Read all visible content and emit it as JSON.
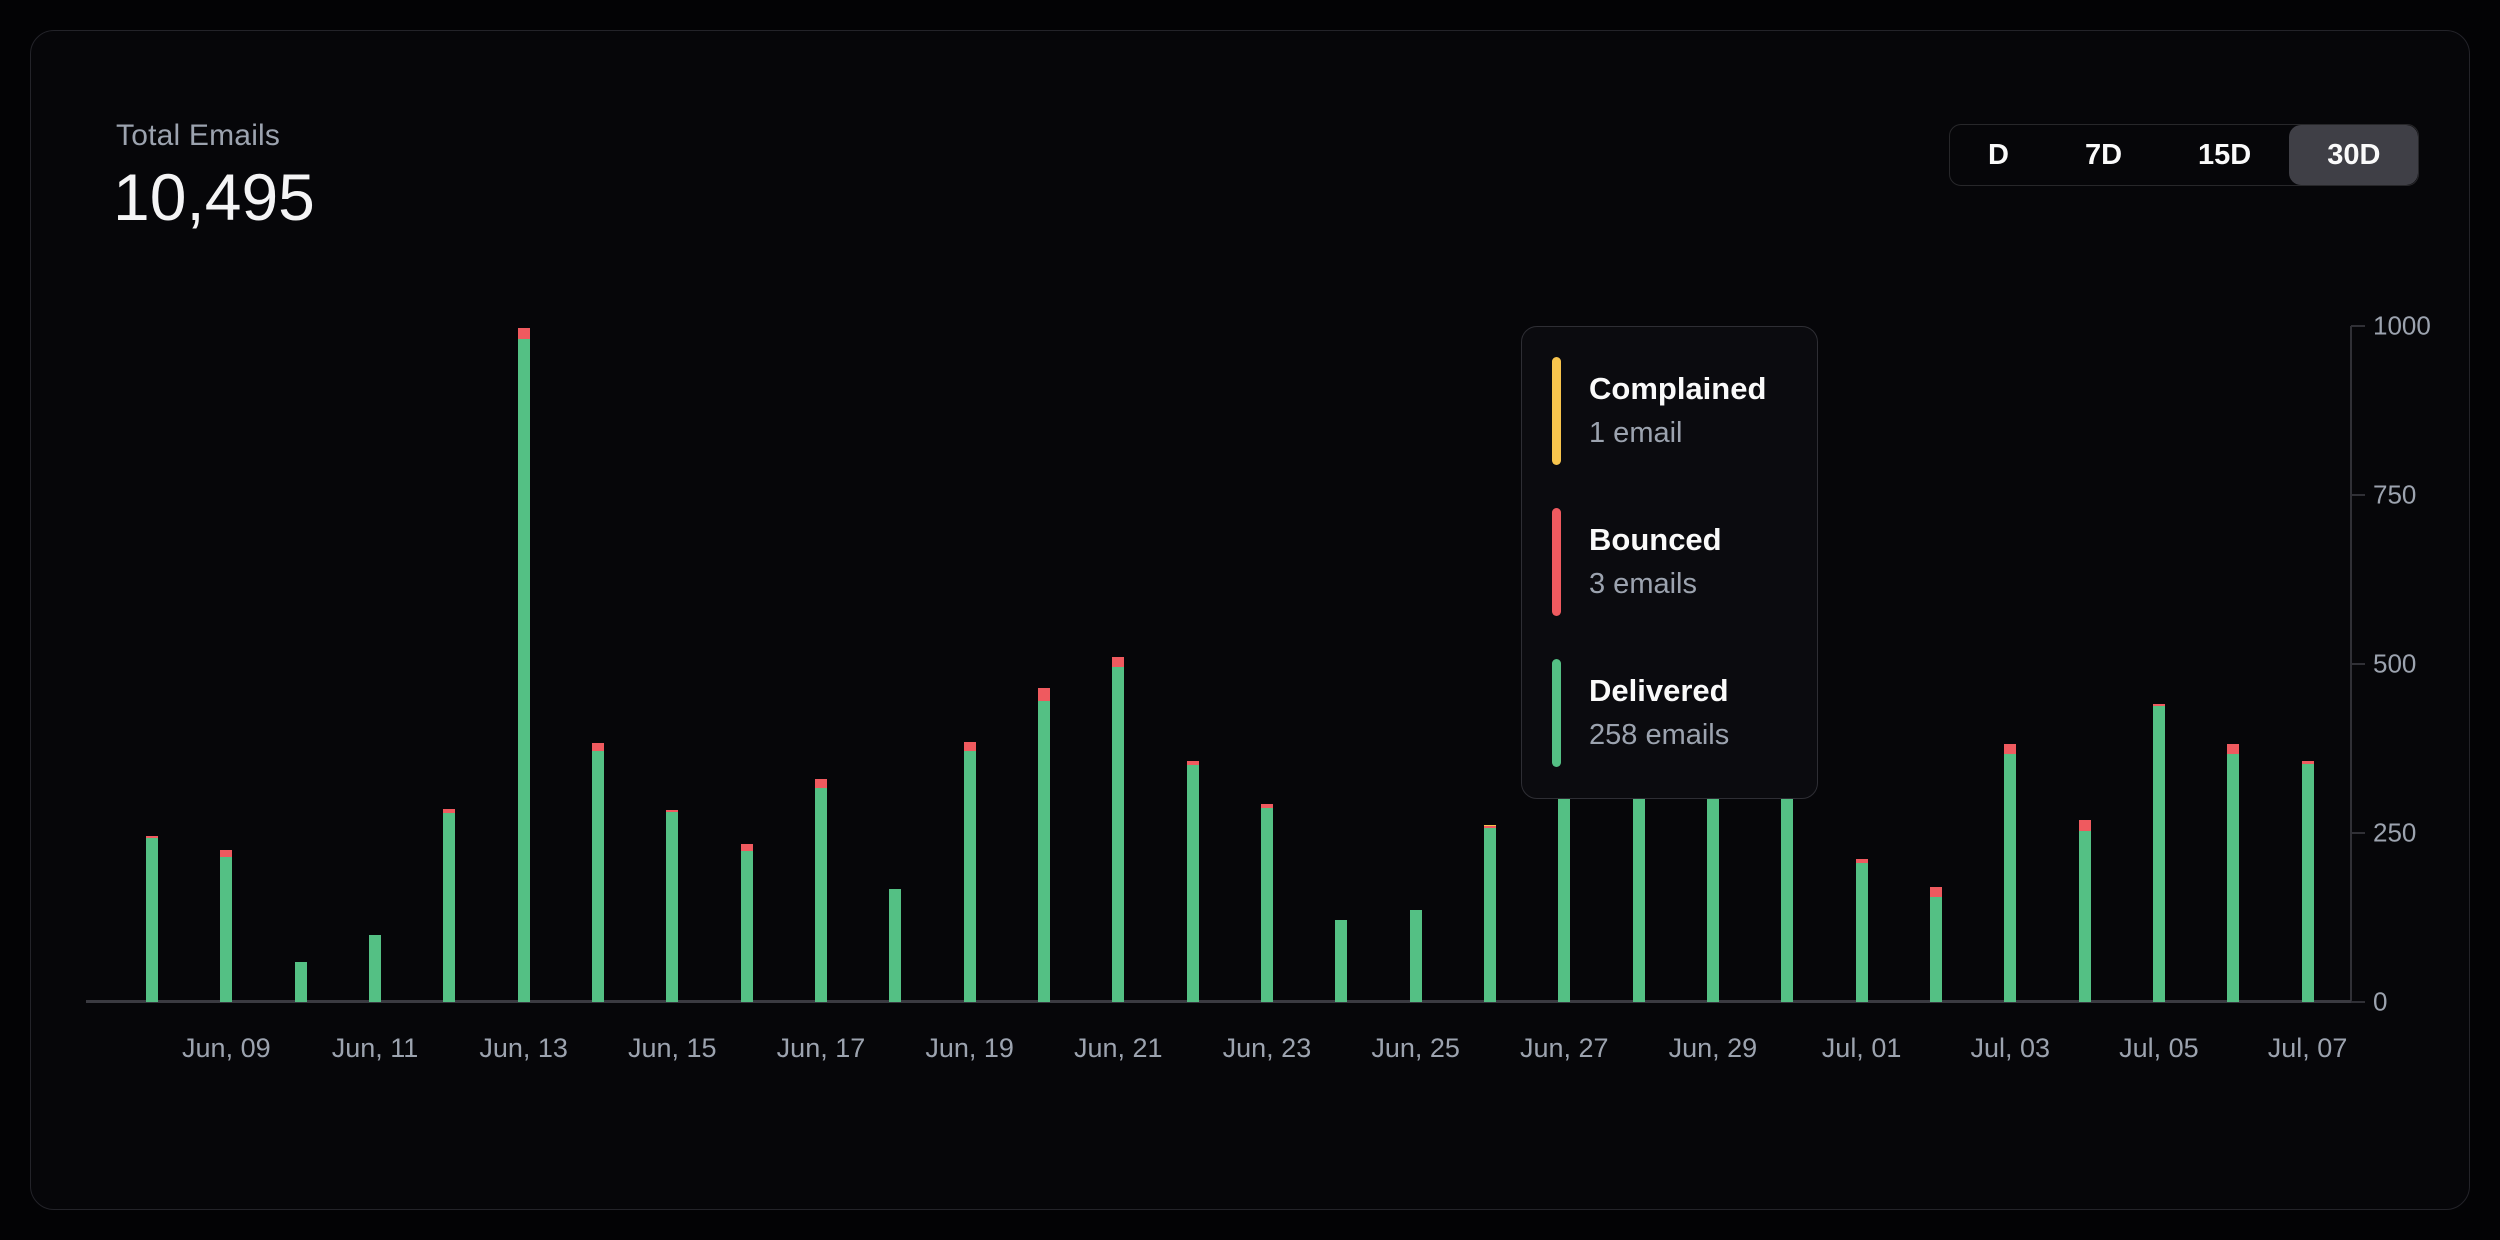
{
  "header": {
    "title": "Total Emails",
    "total": "10,495"
  },
  "range_selector": {
    "options": [
      "D",
      "7D",
      "15D",
      "30D"
    ],
    "active": "30D"
  },
  "tooltip": {
    "entries": [
      {
        "label": "Complained",
        "value": "1 email",
        "color": "#F7C44D"
      },
      {
        "label": "Bounced",
        "value": "3 emails",
        "color": "#EF5A5F"
      },
      {
        "label": "Delivered",
        "value": "258 emails",
        "color": "#54C084"
      }
    ]
  },
  "colors": {
    "delivered": "#54C084",
    "bounced": "#EF5A5F",
    "complained": "#F7C44D",
    "axis_label": "#9CA3AF",
    "card_bg": "#060609",
    "active_button_bg": "#3F3F46"
  },
  "chart_data": {
    "type": "bar",
    "stacked": true,
    "title": "Total Emails",
    "xlabel": "",
    "ylabel": "",
    "ylim": [
      0,
      1000
    ],
    "y_ticks": [
      0,
      250,
      500,
      750,
      1000
    ],
    "y_axis_position": "right",
    "grid": false,
    "legend_position": "tooltip-only",
    "categories": [
      "Jun 08",
      "Jun 09",
      "Jun 10",
      "Jun 11",
      "Jun 12",
      "Jun 13",
      "Jun 14",
      "Jun 15",
      "Jun 16",
      "Jun 17",
      "Jun 18",
      "Jun 19",
      "Jun 20",
      "Jun 21",
      "Jun 22",
      "Jun 23",
      "Jun 24",
      "Jun 25",
      "Jun 26",
      "Jun 27",
      "Jun 28",
      "Jun 29",
      "Jun 30",
      "Jul 01",
      "Jul 02",
      "Jul 03",
      "Jul 04",
      "Jul 05",
      "Jul 06",
      "Jul 07"
    ],
    "x_tick_labels": [
      "Jun, 09",
      "Jun, 11",
      "Jun, 13",
      "Jun, 15",
      "Jun, 17",
      "Jun, 19",
      "Jun, 21",
      "Jun, 23",
      "Jun, 25",
      "Jun, 27",
      "Jun, 29",
      "Jul, 01",
      "Jul, 03",
      "Jul, 05",
      "Jul, 07"
    ],
    "x_tick_every": 2,
    "x_tick_start_index": 1,
    "series": [
      {
        "name": "Delivered",
        "color": "#54C084",
        "values": [
          243,
          214,
          59,
          99,
          279,
          981,
          371,
          281,
          224,
          316,
          167,
          372,
          446,
          495,
          350,
          287,
          122,
          136,
          258,
          610,
          607,
          605,
          591,
          205,
          155,
          367,
          253,
          438,
          367,
          352
        ]
      },
      {
        "name": "Bounced",
        "color": "#EF5A5F",
        "values": [
          3,
          11,
          0,
          0,
          6,
          16,
          12,
          3,
          10,
          14,
          0,
          13,
          19,
          15,
          7,
          6,
          0,
          0,
          3,
          10,
          8,
          7,
          6,
          6,
          15,
          15,
          16,
          3,
          15,
          5
        ]
      },
      {
        "name": "Complained",
        "color": "#F7C44D",
        "values": [
          0,
          0,
          0,
          0,
          0,
          0,
          0,
          0,
          0,
          0,
          0,
          0,
          0,
          0,
          0,
          0,
          0,
          0,
          1,
          0,
          0,
          0,
          0,
          0,
          0,
          0,
          0,
          0,
          0,
          0
        ]
      }
    ],
    "hovered_category": "Jun 26",
    "hovered_totals": {
      "Delivered": 258,
      "Bounced": 3,
      "Complained": 1
    }
  }
}
